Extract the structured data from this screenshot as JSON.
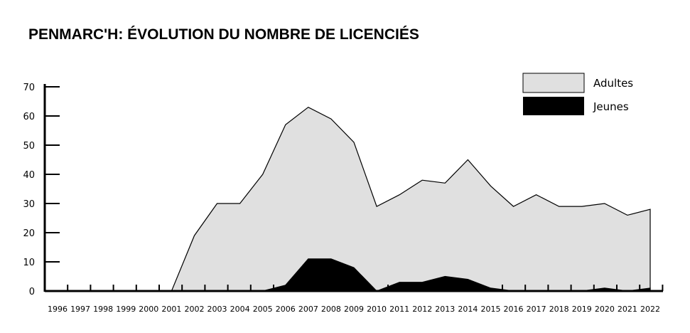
{
  "chart_data": {
    "type": "area",
    "title": "PENMARC'H: ÉVOLUTION DU NOMBRE DE LICENCIÉS",
    "xlabel": "",
    "ylabel": "",
    "ylim": [
      0,
      70
    ],
    "yticks": [
      0,
      10,
      20,
      30,
      40,
      50,
      60,
      70
    ],
    "grid": false,
    "legend_position": "top-right",
    "categories": [
      "1996",
      "1997",
      "1998",
      "1999",
      "2000",
      "2001",
      "2002",
      "2003",
      "2004",
      "2005",
      "2006",
      "2007",
      "2008",
      "2009",
      "2010",
      "2011",
      "2012",
      "2013",
      "2014",
      "2015",
      "2016",
      "2017",
      "2018",
      "2019",
      "2020",
      "2021",
      "2022"
    ],
    "series": [
      {
        "name": "Adultes",
        "color": "#e0e0e0",
        "values": [
          null,
          null,
          null,
          null,
          null,
          0,
          19,
          30,
          30,
          40,
          57,
          63,
          59,
          51,
          29,
          33,
          38,
          37,
          45,
          36,
          29,
          33,
          29,
          29,
          30,
          26,
          28
        ]
      },
      {
        "name": "Jeunes",
        "color": "#000000",
        "values": [
          null,
          null,
          null,
          null,
          null,
          0,
          0,
          0,
          0,
          0,
          2,
          11,
          11,
          8,
          0,
          3,
          3,
          5,
          4,
          1,
          0,
          0,
          0,
          0,
          1,
          0,
          1
        ]
      }
    ]
  }
}
